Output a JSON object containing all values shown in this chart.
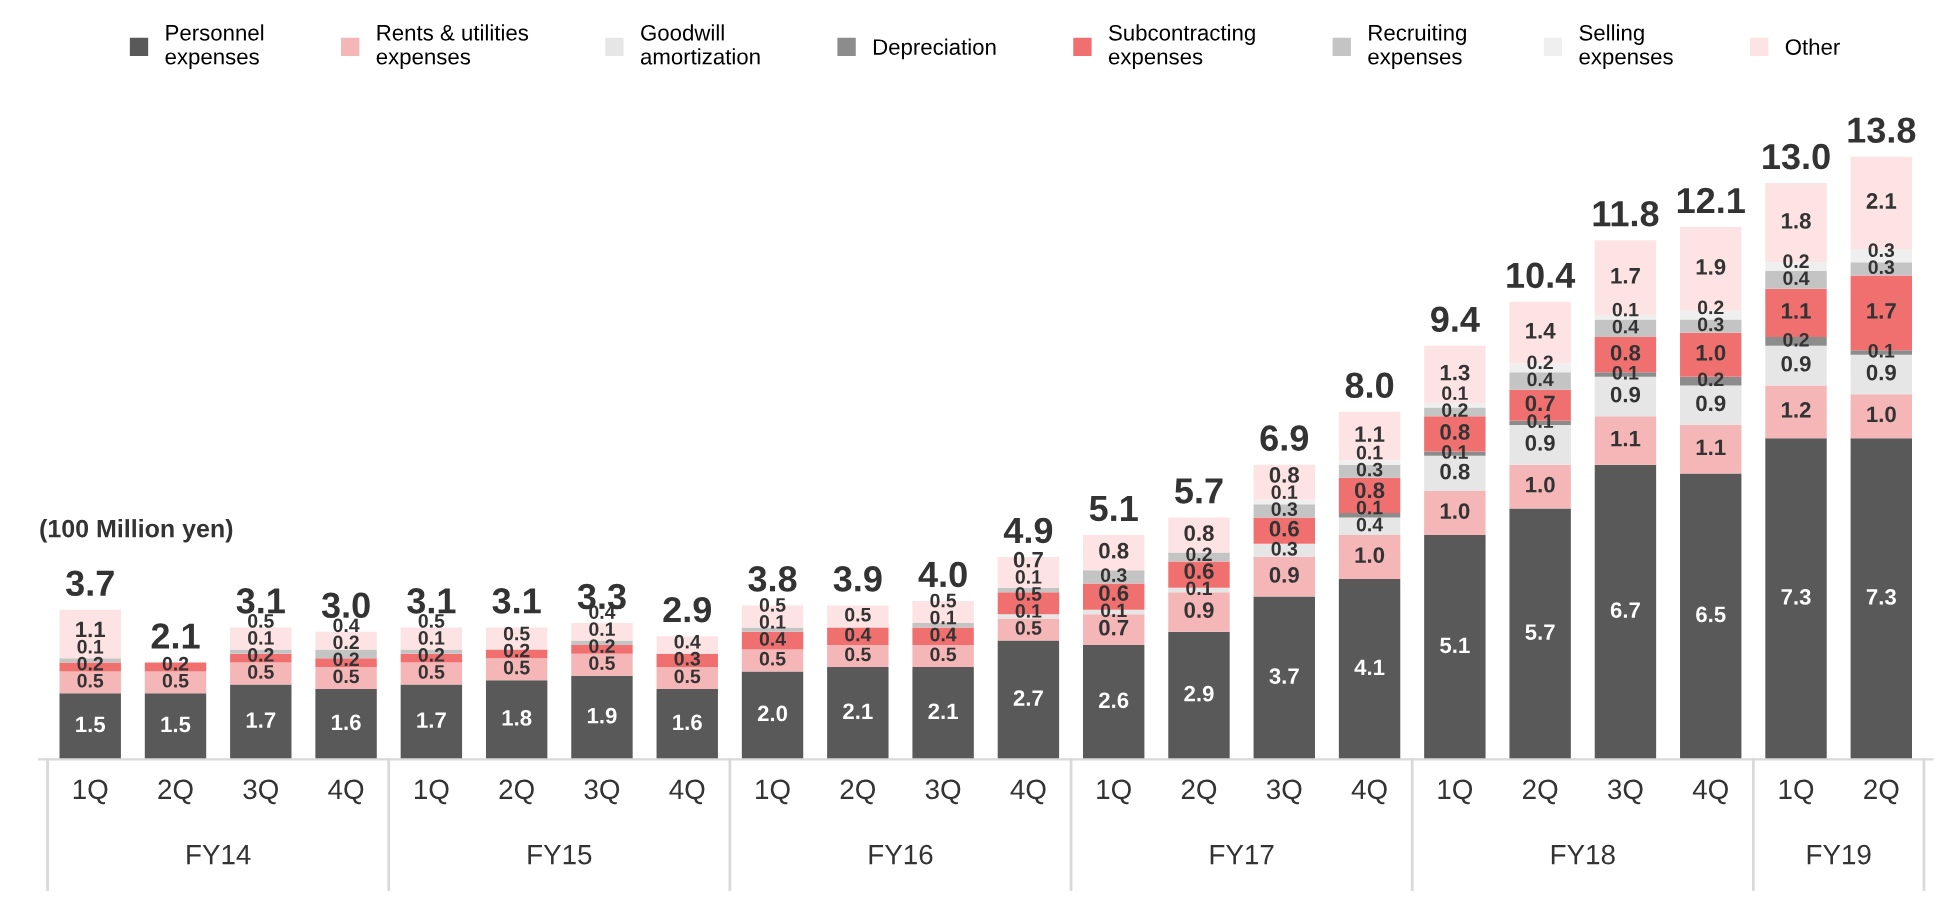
{
  "chart_data": {
    "type": "bar",
    "stacked": true,
    "data_labels": true,
    "legend": "top",
    "grid": false,
    "tick_labels": "x",
    "categories": [
      "1Q",
      "2Q",
      "3Q",
      "4Q",
      "1Q",
      "2Q",
      "3Q",
      "4Q",
      "1Q",
      "2Q",
      "3Q",
      "4Q",
      "1Q",
      "2Q",
      "3Q",
      "4Q",
      "1Q",
      "2Q",
      "3Q",
      "4Q",
      "1Q",
      "2Q"
    ],
    "annotations": [
      "(100 Million yen)",
      "FY14",
      "FY15",
      "FY16",
      "FY17",
      "FY18",
      "FY19"
    ],
    "totals": [
      "3.7",
      "2.1",
      "3.1",
      "3.0",
      "3.1",
      "3.1",
      "3.3",
      "2.9",
      "3.8",
      "3.9",
      "4.0",
      "4.9",
      "5.1",
      "5.7",
      "6.9",
      "8.0",
      "9.4",
      "10.4",
      "11.8",
      "12.1",
      "13.0",
      "13.8"
    ],
    "series": [
      {
        "name": "Personnel expenses",
        "color": "#595959",
        "values": [
          1.5,
          1.5,
          1.7,
          1.6,
          1.7,
          1.8,
          1.9,
          1.6,
          2.0,
          2.1,
          2.1,
          2.7,
          2.6,
          2.9,
          3.7,
          4.1,
          5.1,
          5.7,
          6.7,
          6.5,
          7.3,
          7.3
        ],
        "value_labels": [
          "1.5",
          "1.5",
          "1.7",
          "1.6",
          "1.7",
          "1.8",
          "1.9",
          "1.6",
          "2.0",
          "2.1",
          "2.1",
          "2.7",
          "2.6",
          "2.9",
          "3.7",
          "4.1",
          "5.1",
          "5.7",
          "6.7",
          "6.5",
          "7.3",
          "7.3"
        ]
      },
      {
        "name": "Rents & utilities expenses",
        "color": "#f4b6b6",
        "values": [
          0.5,
          0.5,
          0.5,
          0.5,
          0.5,
          0.5,
          0.5,
          0.5,
          0.5,
          0.5,
          0.5,
          0.5,
          0.7,
          0.9,
          0.9,
          1.0,
          1.0,
          1.0,
          1.1,
          1.1,
          1.2,
          1.0
        ],
        "value_labels": [
          "0.5",
          "0.5",
          "0.5",
          "0.5",
          "0.5",
          "0.5",
          "0.5",
          "0.5",
          "0.5",
          "0.5",
          "0.5",
          "0.5",
          "0.7",
          "0.9",
          "0.9",
          "1.0",
          "1.0",
          "1.0",
          "1.1",
          "1.1",
          "1.2",
          "1.0"
        ]
      },
      {
        "name": "Goodwill amortization",
        "color": "#e6e6e6",
        "values": [
          null,
          null,
          null,
          null,
          null,
          null,
          null,
          null,
          null,
          null,
          null,
          0.1,
          0.1,
          0.1,
          0.3,
          0.4,
          0.8,
          0.9,
          0.9,
          0.9,
          0.9,
          0.9
        ],
        "value_labels": [
          null,
          null,
          null,
          null,
          null,
          null,
          null,
          null,
          null,
          null,
          null,
          "0.1",
          "0.1",
          "0.1",
          "0.3",
          "0.4",
          "0.8",
          "0.9",
          "0.9",
          "0.9",
          "0.9",
          "0.9"
        ]
      },
      {
        "name": "Depreciation",
        "color": "#8c8c8c",
        "values": [
          null,
          null,
          null,
          null,
          null,
          null,
          null,
          null,
          null,
          null,
          null,
          null,
          null,
          null,
          null,
          0.1,
          0.1,
          0.1,
          0.1,
          0.2,
          0.2,
          0.1
        ],
        "value_labels": [
          null,
          null,
          null,
          null,
          null,
          null,
          null,
          null,
          null,
          null,
          null,
          null,
          null,
          null,
          null,
          "0.1",
          "0.1",
          "0.1",
          "0.1",
          "0.2",
          "0.2",
          "0.1"
        ]
      },
      {
        "name": "Subcontracting expenses",
        "color": "#f07070",
        "values": [
          0.2,
          0.2,
          0.2,
          0.2,
          0.2,
          0.2,
          0.2,
          0.3,
          0.4,
          0.4,
          0.4,
          0.5,
          0.6,
          0.6,
          0.6,
          0.8,
          0.8,
          0.7,
          0.8,
          1.0,
          1.1,
          1.7
        ],
        "value_labels": [
          "0.2",
          "0.2",
          "0.2",
          "0.2",
          "0.2",
          "0.2",
          "0.2",
          "0.3",
          "0.4",
          "0.4",
          "0.4",
          "0.5",
          "0.6",
          "0.6",
          "0.6",
          "0.8",
          "0.8",
          "0.7",
          "0.8",
          "1.0",
          "1.1",
          "1.7"
        ]
      },
      {
        "name": "Recruiting expenses",
        "color": "#c4c4c4",
        "values": [
          0.1,
          null,
          0.1,
          0.2,
          0.1,
          null,
          0.1,
          null,
          0.1,
          null,
          0.1,
          0.1,
          0.3,
          0.2,
          0.3,
          0.3,
          0.2,
          0.4,
          0.4,
          0.3,
          0.4,
          0.3
        ],
        "value_labels": [
          "0.1",
          null,
          "0.1",
          "0.2",
          "0.1",
          null,
          "0.1",
          null,
          "0.1",
          null,
          "0.1",
          "0.1",
          "0.3",
          "0.2",
          "0.3",
          "0.3",
          "0.2",
          "0.4",
          "0.4",
          "0.3",
          "0.4",
          "0.3"
        ]
      },
      {
        "name": "Selling expenses",
        "color": "#efefef",
        "values": [
          null,
          null,
          null,
          null,
          null,
          null,
          null,
          null,
          null,
          null,
          null,
          null,
          null,
          null,
          0.1,
          0.1,
          0.1,
          0.2,
          0.1,
          0.2,
          0.2,
          0.3
        ],
        "value_labels": [
          null,
          null,
          null,
          null,
          null,
          null,
          null,
          null,
          null,
          null,
          null,
          null,
          null,
          null,
          "0.1",
          "0.1",
          "0.1",
          "0.2",
          "0.1",
          "0.2",
          "0.2",
          "0.3"
        ]
      },
      {
        "name": "Other",
        "color": "#fde3e3",
        "values": [
          1.1,
          null,
          0.5,
          0.4,
          0.5,
          0.5,
          0.4,
          0.4,
          0.5,
          0.5,
          0.5,
          0.7,
          0.8,
          0.8,
          0.8,
          1.1,
          1.3,
          1.4,
          1.7,
          1.9,
          1.8,
          2.1
        ],
        "value_labels": [
          "1.1",
          null,
          "0.5",
          "0.4",
          "0.5",
          "0.5",
          "0.4",
          "0.4",
          "0.5",
          "0.5",
          "0.5",
          "0.7",
          "0.8",
          "0.8",
          "0.8",
          "1.1",
          "1.3",
          "1.4",
          "1.7",
          "1.9",
          "1.8",
          "2.1"
        ]
      }
    ]
  }
}
